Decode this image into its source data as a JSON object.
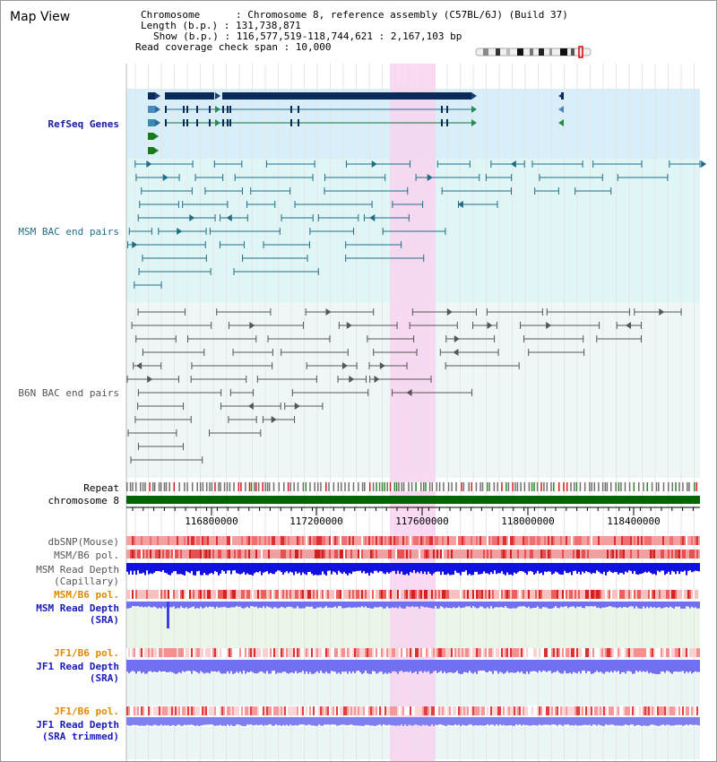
{
  "view_title": "Map View",
  "info": {
    "chromosome": "Chromosome      : Chromosome 8, reference assembly (C57BL/6J) (Build 37)",
    "length": "Length (b.p.) : 131,738,871",
    "show": "Show (b.p.) : 116,577,519-118,744,621 : 2,167,103 bp",
    "coverage": "Read coverage check span : 10,000"
  },
  "tracks": {
    "refseq": "RefSeq Genes",
    "msm_bac": "MSM BAC end pairs",
    "b6n_bac": "B6N BAC end pairs",
    "repeat": "Repeat",
    "chromosome": "chromosome 8",
    "dbsnp": "dbSNP(Mouse)",
    "msm_b6_pol_1": "MSM/B6 pol.",
    "msm_read_depth_cap_1": "MSM Read Depth",
    "msm_read_depth_cap_2": "(Capillary)",
    "msm_b6_pol_2": "MSM/B6 pol.",
    "msm_read_depth_sra_1": "MSM Read Depth",
    "msm_read_depth_sra_2": "(SRA)",
    "jf1_b6_pol_1": "JF1/B6 pol.",
    "jf1_read_depth_sra_1": "JF1 Read Depth",
    "jf1_read_depth_sra_2": "(SRA)",
    "jf1_b6_pol_2": "JF1/B6 pol.",
    "jf1_read_depth_trim_1": "JF1 Read Depth",
    "jf1_read_depth_trim_2": "(SRA trimmed)"
  },
  "axis": {
    "ticks": [
      "116800000",
      "117200000",
      "117600000",
      "118000000",
      "118400000"
    ]
  },
  "colors": {
    "refseq_bg": "#d8eef8",
    "bac_bg": "#e0f6f6",
    "highlight": "#f8d4f0",
    "gene": "#0a2a5a",
    "msm_bac": "#1f6e86",
    "b6n_bac": "#555555",
    "chromosome": "#006400",
    "snp": "#e84040",
    "depth_cap": "#1010e0",
    "depth_sra": "#7070f0"
  }
}
